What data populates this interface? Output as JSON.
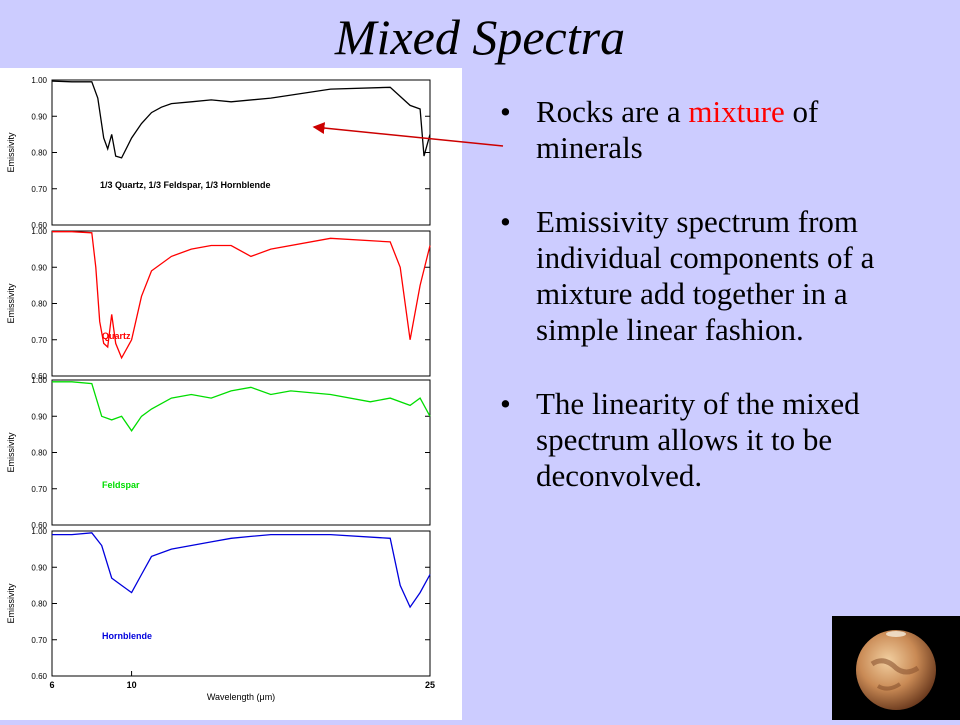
{
  "slide": {
    "title": "Mixed Spectra"
  },
  "bullets": [
    {
      "pre": "Rocks are a ",
      "highlight": "mixture",
      "post": " of minerals"
    },
    {
      "pre": "Emissivity spectrum from individual components of a mixture add together in a simple linear fashion.",
      "highlight": "",
      "post": ""
    },
    {
      "pre": "The linearity of the mixed spectrum allows it to be deconvolved.",
      "highlight": "",
      "post": ""
    }
  ],
  "colors": {
    "background": "#ccccff",
    "highlight": "#ff0000",
    "arrow": "#cc0000"
  },
  "chart_data": [
    {
      "type": "line",
      "ylabel": "Emissivity",
      "label": "1/3 Quartz, 1/3 Feldspar, 1/3 Hornblende",
      "color": "#000000",
      "xlim": [
        6,
        25
      ],
      "ylim": [
        0.6,
        1.0
      ],
      "yticks": [
        "1.00",
        "0.90",
        "0.80",
        "0.70",
        "0.60"
      ],
      "x": [
        6.0,
        7.0,
        8.0,
        8.3,
        8.6,
        8.8,
        9.0,
        9.2,
        9.5,
        10.0,
        10.5,
        11.0,
        11.5,
        12.0,
        13.0,
        14.0,
        15.0,
        17.0,
        20.0,
        23.0,
        24.0,
        24.5,
        24.7,
        25.0
      ],
      "y": [
        0.997,
        0.995,
        0.995,
        0.95,
        0.84,
        0.81,
        0.85,
        0.79,
        0.785,
        0.84,
        0.88,
        0.91,
        0.925,
        0.935,
        0.94,
        0.945,
        0.94,
        0.95,
        0.975,
        0.98,
        0.93,
        0.92,
        0.79,
        0.85
      ]
    },
    {
      "type": "line",
      "ylabel": "Emissivity",
      "label": "Quartz",
      "color": "#ff0000",
      "xlim": [
        6,
        25
      ],
      "ylim": [
        0.6,
        1.0
      ],
      "yticks": [
        "1.00",
        "0.90",
        "0.80",
        "0.70",
        "0.60"
      ],
      "x": [
        6.0,
        7.0,
        8.0,
        8.2,
        8.4,
        8.6,
        8.8,
        9.0,
        9.2,
        9.5,
        10.0,
        10.5,
        11.0,
        12.0,
        13.0,
        14.0,
        15.0,
        16.0,
        17.0,
        20.0,
        23.0,
        23.5,
        24.0,
        24.5,
        25.0
      ],
      "y": [
        0.998,
        0.998,
        0.995,
        0.9,
        0.75,
        0.69,
        0.68,
        0.77,
        0.69,
        0.65,
        0.7,
        0.82,
        0.89,
        0.93,
        0.95,
        0.96,
        0.96,
        0.93,
        0.95,
        0.98,
        0.97,
        0.9,
        0.7,
        0.85,
        0.96
      ]
    },
    {
      "type": "line",
      "ylabel": "Emissivity",
      "label": "Feldspar",
      "color": "#00dd00",
      "xlim": [
        6,
        25
      ],
      "ylim": [
        0.6,
        1.0
      ],
      "yticks": [
        "1.00",
        "0.90",
        "0.80",
        "0.70",
        "0.60"
      ],
      "x": [
        6.0,
        7.0,
        8.0,
        8.5,
        9.0,
        9.5,
        10.0,
        10.5,
        11.0,
        12.0,
        13.0,
        14.0,
        15.0,
        16.0,
        17.0,
        18.0,
        20.0,
        22.0,
        23.0,
        24.0,
        24.5,
        25.0
      ],
      "y": [
        0.995,
        0.995,
        0.99,
        0.9,
        0.89,
        0.9,
        0.86,
        0.9,
        0.92,
        0.95,
        0.96,
        0.95,
        0.97,
        0.98,
        0.96,
        0.97,
        0.96,
        0.94,
        0.95,
        0.93,
        0.95,
        0.9
      ]
    },
    {
      "type": "line",
      "ylabel": "Emissivity",
      "label": "Hornblende",
      "color": "#0000dd",
      "xlim": [
        6,
        25
      ],
      "ylim": [
        0.6,
        1.0
      ],
      "yticks": [
        "1.00",
        "0.90",
        "0.80",
        "0.70",
        "0.60"
      ],
      "xticks": [
        "6",
        "10",
        "25"
      ],
      "xlabel": "Wavelength (μm)",
      "x": [
        6.0,
        7.0,
        8.0,
        8.5,
        9.0,
        9.5,
        10.0,
        10.5,
        11.0,
        12.0,
        13.0,
        14.0,
        15.0,
        16.0,
        17.0,
        18.0,
        20.0,
        23.0,
        23.5,
        24.0,
        24.5,
        25.0
      ],
      "y": [
        0.99,
        0.99,
        0.995,
        0.96,
        0.87,
        0.85,
        0.83,
        0.88,
        0.93,
        0.95,
        0.96,
        0.97,
        0.98,
        0.985,
        0.99,
        0.99,
        0.99,
        0.98,
        0.85,
        0.79,
        0.83,
        0.88
      ]
    }
  ]
}
